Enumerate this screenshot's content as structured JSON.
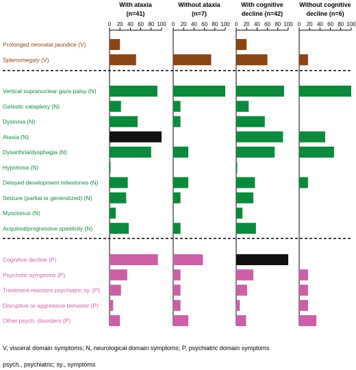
{
  "chart_data": {
    "type": "bar",
    "orientation": "horizontal",
    "panels": [
      {
        "title_lines": [
          "With ataxia",
          "(n=41)"
        ]
      },
      {
        "title_lines": [
          "Without ataxia",
          "(n=7)"
        ]
      },
      {
        "title_lines": [
          "With cognitive",
          "decline (n=42)"
        ]
      },
      {
        "title_lines": [
          "Without cognitive",
          "decline (n=6)"
        ]
      }
    ],
    "x_ticks": [
      "0",
      "20",
      "40",
      "60",
      "80",
      "100"
    ],
    "xlim": [
      0,
      100
    ],
    "groups": [
      {
        "color": "#8B4513",
        "categories": [
          {
            "label": "Prolonged neonatal jaundice (V)",
            "values": [
              20,
              0,
              20,
              0
            ]
          },
          {
            "label": "Splenomegaly (V)",
            "values": [
              51,
              73,
              60,
              17
            ]
          }
        ]
      },
      {
        "color": "#0B8A3B",
        "categories": [
          {
            "label": "Vertical supranuclear gaze palsy (N)",
            "values": [
              92,
              100,
              92,
              100
            ]
          },
          {
            "label": "Gelastic cataplexy (N)",
            "values": [
              22,
              14,
              24,
              0
            ]
          },
          {
            "label": "Dystonia (N)",
            "values": [
              54,
              14,
              55,
              0
            ]
          },
          {
            "label": "Ataxia (N)",
            "values": [
              100,
              0,
              90,
              50
            ]
          },
          {
            "label": "Dysarthria/dysphagia (N)",
            "values": [
              80,
              29,
              74,
              67
            ]
          },
          {
            "label": "Hypotonia (N)",
            "values": [
              2,
              0,
              2,
              0
            ]
          },
          {
            "label": "Delayed development milestones (N)",
            "values": [
              35,
              29,
              36,
              17
            ]
          },
          {
            "label": "Seizure (partial or generalized) (N)",
            "values": [
              32,
              14,
              33,
              0
            ]
          },
          {
            "label": "Myoclonus (N)",
            "values": [
              12,
              0,
              12,
              0
            ]
          },
          {
            "label": "Acquired/progressive spasticity (N)",
            "values": [
              37,
              14,
              38,
              0
            ]
          }
        ]
      },
      {
        "color": "#CC5FA8",
        "categories": [
          {
            "label": "Cognitive decline (P)",
            "values": [
              93,
              57,
              100,
              0
            ]
          },
          {
            "label": "Psychotic symptoms (P)",
            "values": [
              34,
              14,
              33,
              17
            ]
          },
          {
            "label": "Treatment-resistant psychiatric sy. (P)",
            "values": [
              22,
              14,
              21,
              17
            ]
          },
          {
            "label": "Disruptive or aggressive behavior (P)",
            "values": [
              7,
              14,
              7,
              17
            ]
          },
          {
            "label": "Other psych. disorders (P)",
            "values": [
              20,
              29,
              19,
              33
            ]
          }
        ]
      }
    ],
    "highlight_color": "#111111",
    "highlights": [
      {
        "label": "Ataxia (N)",
        "panel": 0
      },
      {
        "label": "Cognitive decline (P)",
        "panel": 2
      }
    ],
    "grid": false,
    "legend": "none"
  },
  "footnotes": {
    "line1": "V, visceral domain symptoms; N, neurological domain symptoms; P, psychiatric domain symptoms",
    "line2": "psych., psychiatric; sy., symptoms"
  }
}
